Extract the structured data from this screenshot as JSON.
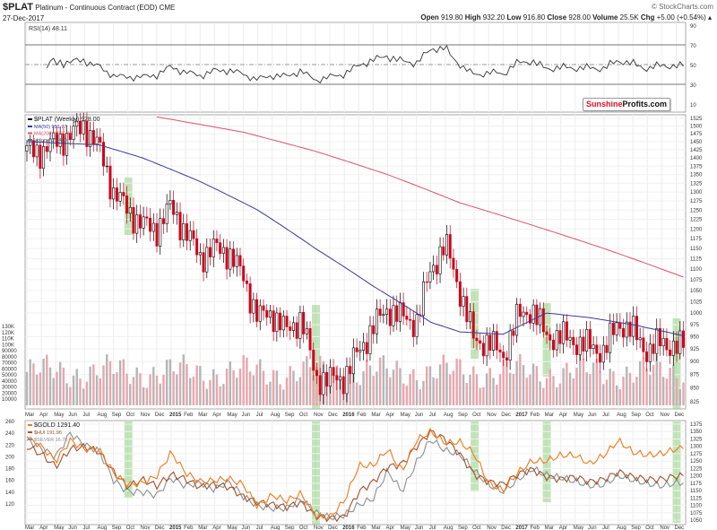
{
  "header": {
    "symbol": "$PLAT",
    "description": "Platinum - Continuous Contract (EOD)",
    "exchange": "CME",
    "date": "27-Dec-2017",
    "copyright": "© StockCharts.com",
    "quote": {
      "open_label": "Open",
      "open": "919.80",
      "high_label": "High",
      "high": "932.20",
      "low_label": "Low",
      "low": "916.80",
      "close_label": "Close",
      "close": "928.00",
      "volume_label": "Volume",
      "volume": "25.5K",
      "chg_label": "Chg",
      "chg": "+5.00 (+0.54%) ▴"
    }
  },
  "logo": {
    "part1": "Sunshine",
    "part2": "Profits.com"
  },
  "colors": {
    "up": "#000000",
    "down": "#d0021b",
    "ma50": "#3a3a9a",
    "ma200": "#e0506a",
    "vol_down": "#e9a5ae",
    "vol_up": "#b5b5b5",
    "gold": "#f07a1a",
    "hui": "#a0522d",
    "silver": "#8c9090",
    "highlight": "#8fcf7f"
  },
  "chart_data": [
    {
      "type": "line",
      "title": "RSI(14) 48.11",
      "legend": "RSI(14) 48.11",
      "ylim": [
        0,
        100
      ],
      "yticks": [
        "90",
        "70",
        "50",
        "30",
        "10"
      ],
      "levels": [
        70,
        50,
        30
      ]
    },
    {
      "type": "candlestick",
      "title": "$PLAT (Weekly) 928.00",
      "legend": [
        "$PLAT (Weekly) 928.00",
        "MA(50) 951.77",
        "MA(200) 1081.38",
        "Volume 25,480"
      ],
      "scale": "log",
      "ylim": [
        825,
        1525
      ],
      "yticks": [
        "1525",
        "1500",
        "1475",
        "1450",
        "1425",
        "1400",
        "1375",
        "1350",
        "1325",
        "1300",
        "1275",
        "1250",
        "1225",
        "1200",
        "1175",
        "1150",
        "1125",
        "1100",
        "1075",
        "1050",
        "1025",
        "1000",
        "975",
        "950",
        "925",
        "900",
        "875",
        "850",
        "825"
      ],
      "volume_ticks": [
        "130K",
        "120K",
        "110K",
        "100K",
        "90000",
        "80000",
        "70000",
        "60000",
        "50000",
        "40000",
        "30000",
        "20000",
        "10000"
      ],
      "x_months": [
        "Mar",
        "Apr",
        "May",
        "Jun",
        "Jul",
        "Aug",
        "Sep",
        "Oct",
        "Nov",
        "Dec",
        "2015",
        "Feb",
        "Mar",
        "Apr",
        "May",
        "Jun",
        "Jul",
        "Aug",
        "Sep",
        "Oct",
        "Nov",
        "Dec",
        "2016",
        "Feb",
        "Mar",
        "Apr",
        "May",
        "Jun",
        "Jul",
        "Aug",
        "Sep",
        "Oct",
        "Nov",
        "Dec",
        "2017",
        "Feb",
        "Mar",
        "Apr",
        "May",
        "Jun",
        "Jul",
        "Aug",
        "Sep",
        "Oct",
        "Nov",
        "Dec"
      ],
      "monthly_close": [
        1420,
        1420,
        1450,
        1470,
        1500,
        1430,
        1300,
        1250,
        1210,
        1200,
        1260,
        1190,
        1130,
        1150,
        1140,
        1080,
        990,
        1000,
        960,
        990,
        870,
        865,
        870,
        920,
        970,
        1010,
        990,
        980,
        1100,
        1160,
        1050,
        940,
        940,
        910,
        990,
        1010,
        950,
        950,
        940,
        930,
        920,
        980,
        960,
        920,
        940,
        928
      ],
      "ma50_points": [
        [
          0,
          1450
        ],
        [
          5,
          1440
        ],
        [
          8,
          1400
        ],
        [
          12,
          1330
        ],
        [
          16,
          1250
        ],
        [
          20,
          1150
        ],
        [
          24,
          1060
        ],
        [
          28,
          980
        ],
        [
          30,
          960
        ],
        [
          33,
          955
        ],
        [
          36,
          1000
        ],
        [
          39,
          990
        ],
        [
          42,
          975
        ],
        [
          45.5,
          952
        ]
      ],
      "ma200_points": [
        [
          9,
          1530
        ],
        [
          15,
          1480
        ],
        [
          20,
          1420
        ],
        [
          25,
          1350
        ],
        [
          30,
          1270
        ],
        [
          35,
          1210
        ],
        [
          40,
          1150
        ],
        [
          45.5,
          1081
        ]
      ],
      "highlight_months": [
        7,
        20,
        31,
        36,
        45
      ]
    },
    {
      "type": "line",
      "legend": [
        "$GOLD 1291.40",
        "$HUI 191.96",
        "$SILVER 16.76"
      ],
      "left_ticks": [
        "260",
        "240",
        "220",
        "200",
        "180",
        "160",
        "140",
        "120"
      ],
      "right_ticks": [
        "1375",
        "1350",
        "1325",
        "1300",
        "1275",
        "1250",
        "1225",
        "1200",
        "1175",
        "1150",
        "1125",
        "1100",
        "1075",
        "1050"
      ],
      "gold_ylim": [
        1050,
        1375
      ],
      "series": [
        {
          "name": "$GOLD",
          "values": [
            1330,
            1300,
            1250,
            1320,
            1290,
            1290,
            1210,
            1170,
            1175,
            1200,
            1280,
            1210,
            1180,
            1185,
            1190,
            1170,
            1095,
            1135,
            1115,
            1140,
            1065,
            1060,
            1115,
            1235,
            1235,
            1290,
            1215,
            1320,
            1350,
            1310,
            1315,
            1275,
            1175,
            1150,
            1210,
            1250,
            1250,
            1270,
            1270,
            1240,
            1270,
            1320,
            1280,
            1270,
            1275,
            1291.4
          ]
        },
        {
          "name": "$HUI",
          "values": [
            250,
            235,
            210,
            245,
            250,
            240,
            200,
            170,
            185,
            172,
            195,
            185,
            170,
            175,
            170,
            150,
            140,
            135,
            130,
            140,
            112,
            108,
            110,
            160,
            180,
            210,
            215,
            250,
            280,
            265,
            235,
            195,
            180,
            175,
            195,
            205,
            190,
            185,
            190,
            180,
            185,
            200,
            190,
            185,
            185,
            191.96
          ]
        },
        {
          "name": "$SILVER",
          "values": [
            20.5,
            19.7,
            19.0,
            21.0,
            20.0,
            19.5,
            17.0,
            16.0,
            16.0,
            15.7,
            17.2,
            16.5,
            16.8,
            16.2,
            16.9,
            15.6,
            14.8,
            14.6,
            14.6,
            15.4,
            14.2,
            13.8,
            14.0,
            14.9,
            15.4,
            17.8,
            16.0,
            18.5,
            20.5,
            19.5,
            19.2,
            17.8,
            16.6,
            16.0,
            17.0,
            18.0,
            17.4,
            17.2,
            16.9,
            16.5,
            16.6,
            17.4,
            17.0,
            16.7,
            16.5,
            16.76
          ]
        }
      ]
    }
  ]
}
